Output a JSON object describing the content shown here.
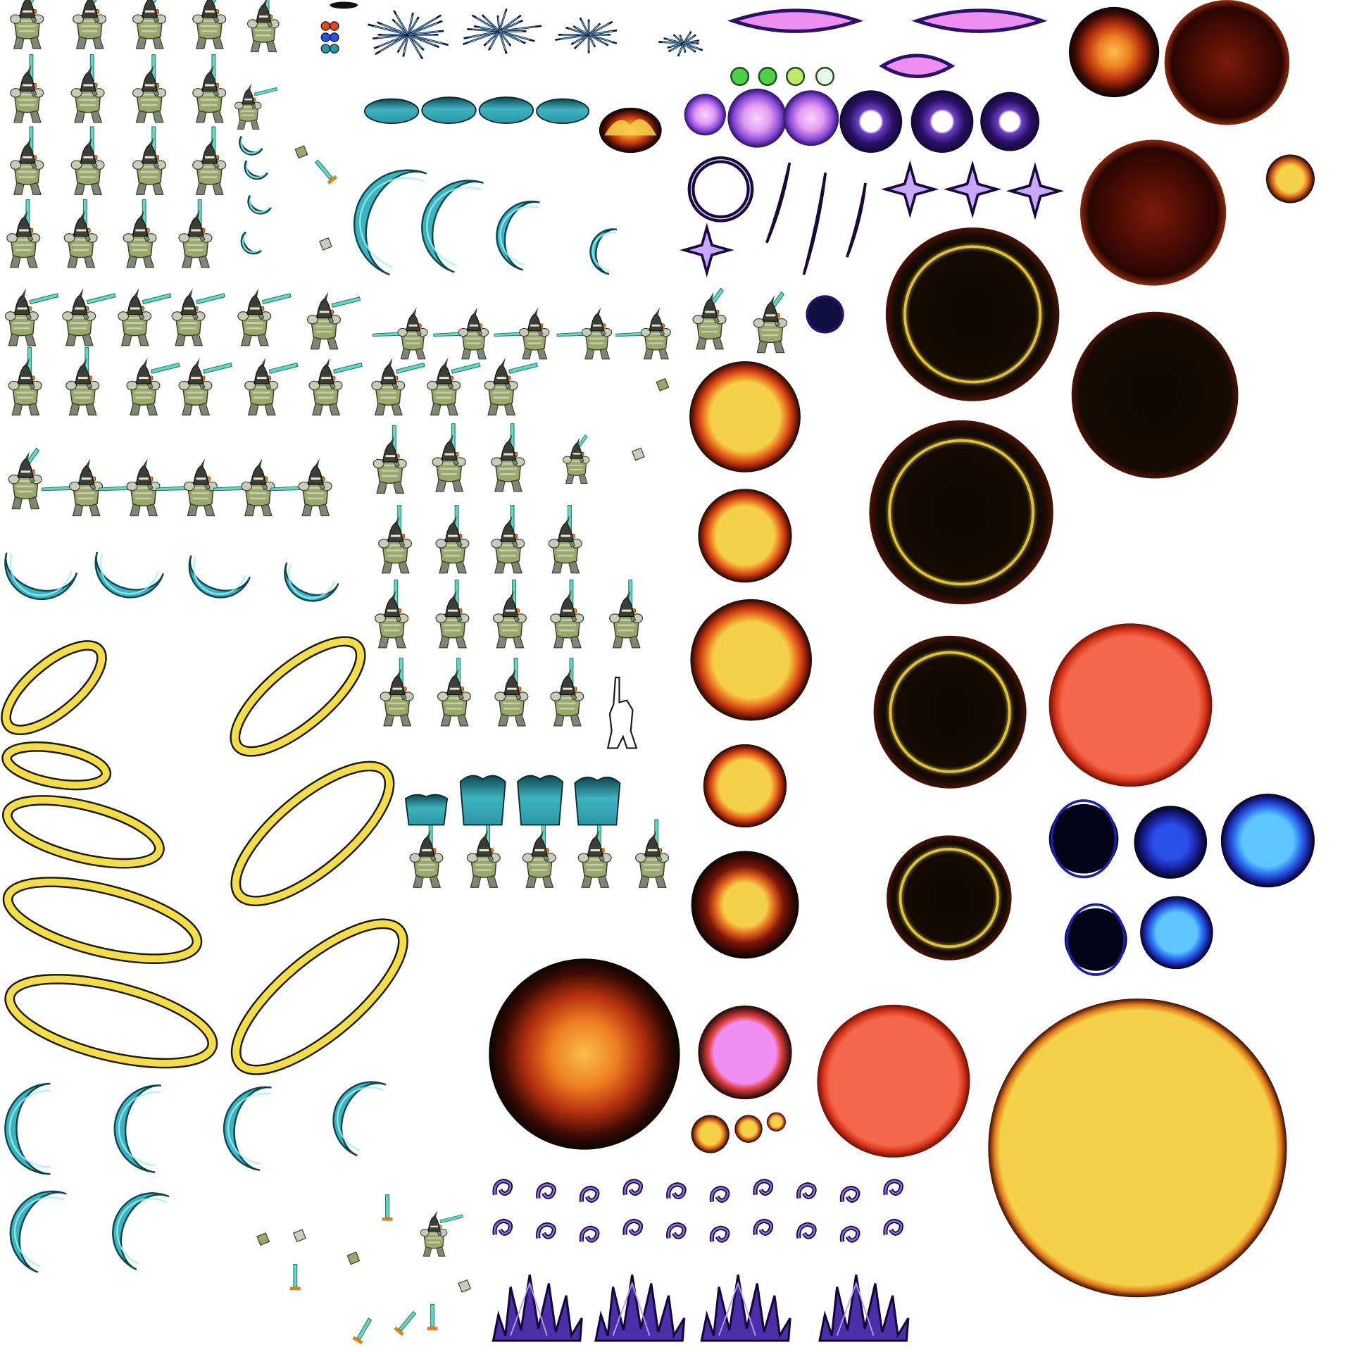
{
  "sheet": {
    "background": "#ffffff",
    "palette": {
      "armor_dark": "#3a3e36",
      "armor_light": "#c9cdb8",
      "armor_mid": "#7f8772",
      "skin_green": "#9aa86a",
      "blade_cyan": "#63d7c0",
      "hilt_orange": "#e0801c",
      "crescent_cyan": "#3fb2bf",
      "crescent_dark": "#0e4650",
      "ring_yellow": "#f4dc4a",
      "ring_outline": "#1a1a10",
      "fire_core": "#f5d14a",
      "fire_mid": "#f08a28",
      "fire_edge": "#7a1408",
      "fire_black": "#120a04",
      "void_black": "#0d0802",
      "halo_gold": "#e0c23c",
      "coral": "#f3674a",
      "coral_edge": "#b8200e",
      "pink_core": "#f08ff0",
      "violet_dark": "#2a1268",
      "violet_mid": "#6f3fc4",
      "blue_bright": "#5ec6ff",
      "blue_mid": "#2a4ee8",
      "navy": "#03041a",
      "grass_violet": "#4a2fa8",
      "shard_navy": "#101a3a"
    },
    "sections": {
      "knight_frames": "knight-sprite",
      "crescent_slashes": "crescent-slash-effect",
      "golden_rings": "golden-ring-effect",
      "fire_orbs": "fire-orb-effect",
      "void_orbs": "void-orb-effect",
      "purple_effects": "purple-energy-effect",
      "blue_orbs": "blue-orb-effect"
    }
  }
}
